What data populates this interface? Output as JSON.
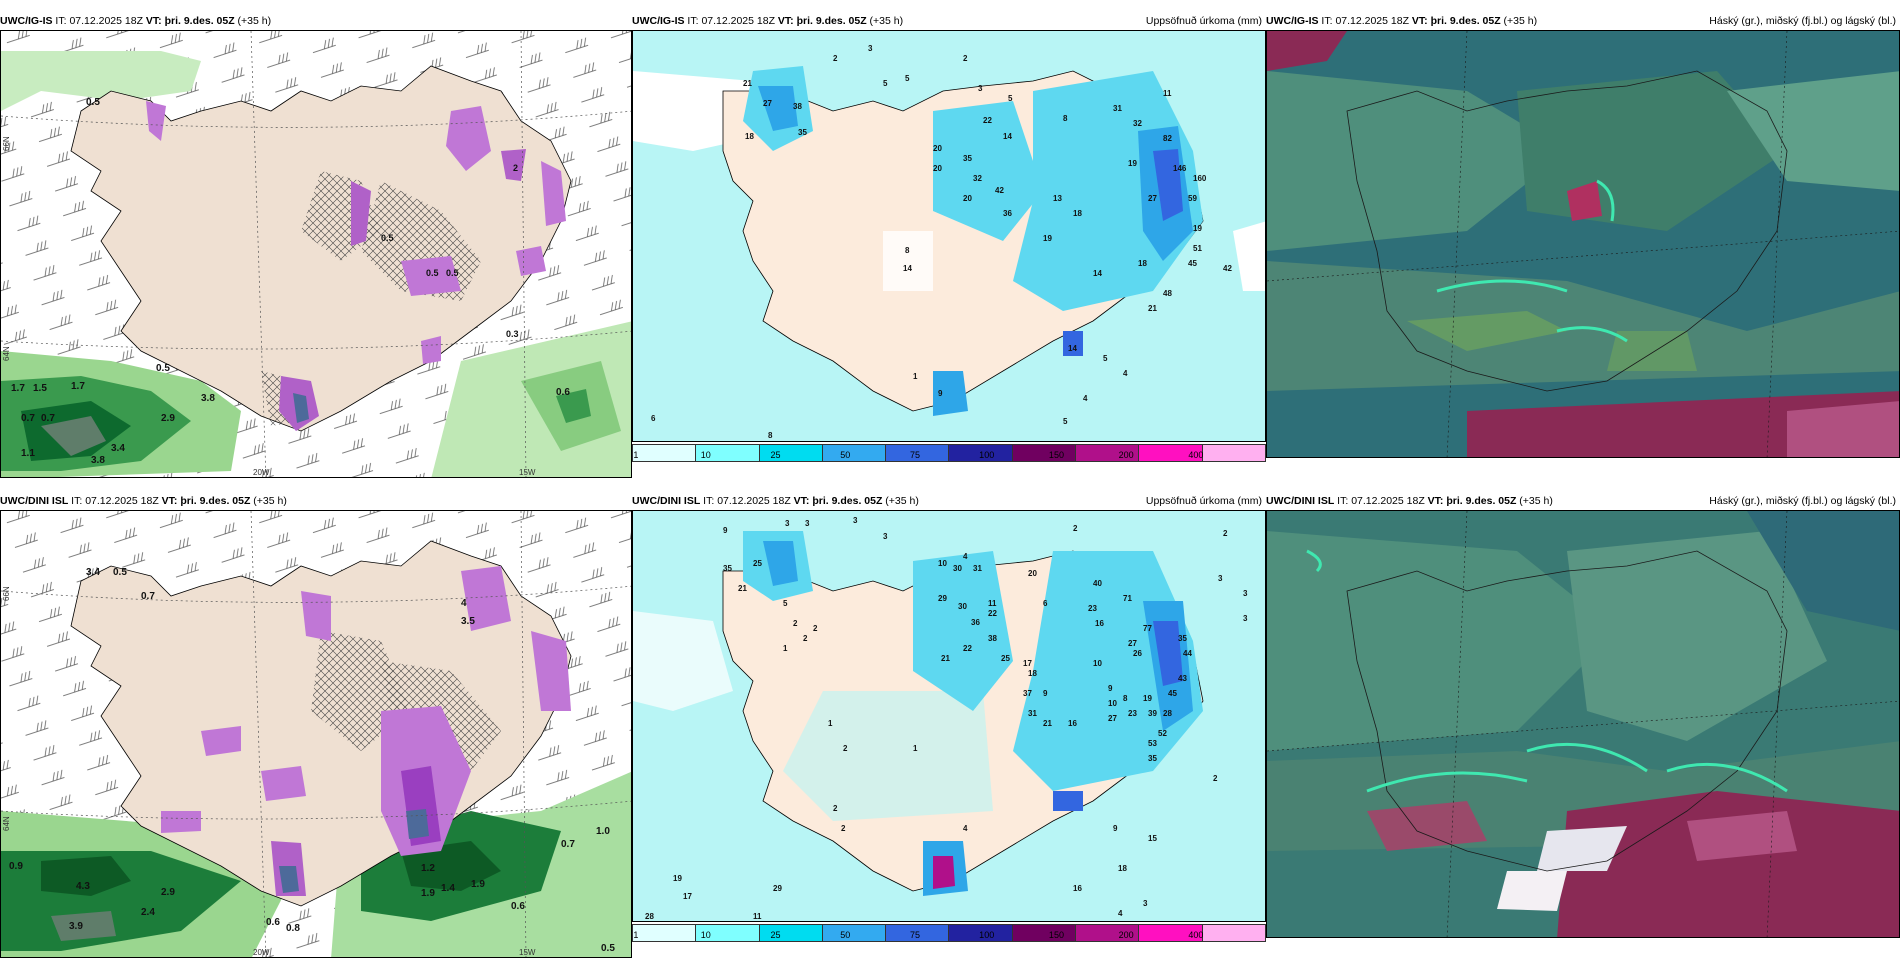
{
  "panels": [
    {
      "id": "p1",
      "model": "UWC/IG-IS",
      "it_prefix": "IT:",
      "it": "07.12.2025 18Z",
      "vt_prefix": "VT:",
      "vt": "þri. 9.des. 05Z",
      "lead": "(+35 h)",
      "right_title": ""
    },
    {
      "id": "p2",
      "model": "UWC/IG-IS",
      "it_prefix": "IT:",
      "it": "07.12.2025 18Z",
      "vt_prefix": "VT:",
      "vt": "þri. 9.des. 05Z",
      "lead": "(+35 h)",
      "right_title": "Uppsöfnuð úrkoma (mm)"
    },
    {
      "id": "p3",
      "model": "UWC/IG-IS",
      "it_prefix": "IT:",
      "it": "07.12.2025 18Z",
      "vt_prefix": "VT:",
      "vt": "þri. 9.des. 05Z",
      "lead": "(+35 h)",
      "right_title": "Háský (gr.), miðský (fj.bl.) og lágský (bl.)"
    },
    {
      "id": "p4",
      "model": "UWC/DINI ISL",
      "it_prefix": "IT:",
      "it": "07.12.2025 18Z",
      "vt_prefix": "VT:",
      "vt": "þri. 9.des. 05Z",
      "lead": "(+35 h)",
      "right_title": ""
    },
    {
      "id": "p5",
      "model": "UWC/DINI ISL",
      "it_prefix": "IT:",
      "it": "07.12.2025 18Z",
      "vt_prefix": "VT:",
      "vt": "þri. 9.des. 05Z",
      "lead": "(+35 h)",
      "right_title": "Uppsöfnuð úrkoma (mm)"
    },
    {
      "id": "p6",
      "model": "UWC/DINI ISL",
      "it_prefix": "IT:",
      "it": "07.12.2025 18Z",
      "vt_prefix": "VT:",
      "vt": "þri. 9.des. 05Z",
      "lead": "(+35 h)",
      "right_title": "Háský (gr.), miðský (fj.bl.) og lágský (bl.)"
    }
  ],
  "axis_labels": {
    "lon_20": "20W",
    "lon_15": "15W",
    "lat_66": "66N",
    "lat_64": "64N",
    "lat_63": "63N"
  },
  "colorbar": {
    "ticks": [
      "1",
      "10",
      "25",
      "50",
      "75",
      "100",
      "150",
      "200",
      "400"
    ],
    "colors": [
      "#e0ffff",
      "#7fffff",
      "#00dcf0",
      "#33aaf0",
      "#3366e0",
      "#2222a0",
      "#700060",
      "#b0108a",
      "#ff10c0",
      "#ffb0f0"
    ]
  },
  "precip_labels_top": [
    "2",
    "3",
    "5",
    "5",
    "3",
    "2",
    "21",
    "27",
    "38",
    "35",
    "18",
    "4",
    "5",
    "3",
    "2",
    "3",
    "22",
    "14",
    "8",
    "3",
    "4",
    "20",
    "35",
    "32",
    "20",
    "20",
    "42",
    "36",
    "19",
    "8",
    "13",
    "18",
    "9",
    "5",
    "9",
    "6",
    "31",
    "32",
    "11",
    "19",
    "82",
    "27",
    "15",
    "146",
    "160",
    "59",
    "36",
    "51",
    "18",
    "19",
    "1",
    "45",
    "14",
    "30",
    "26",
    "48",
    "14",
    "21",
    "14",
    "8",
    "42",
    "5",
    "4",
    "4",
    "5",
    "6",
    "8",
    "9",
    "21",
    "12",
    "1",
    "5",
    "2",
    "6"
  ],
  "precip_labels_bottom": [
    "9",
    "3",
    "3",
    "3",
    "3",
    "2",
    "2",
    "3",
    "3",
    "3",
    "35",
    "25",
    "21",
    "5",
    "2",
    "2",
    "2",
    "1",
    "10",
    "4",
    "30",
    "31",
    "20",
    "29",
    "30",
    "36",
    "11",
    "22",
    "6",
    "22",
    "21",
    "38",
    "25",
    "40",
    "23",
    "16",
    "71",
    "77",
    "35",
    "27",
    "26",
    "44",
    "17",
    "18",
    "10",
    "9",
    "10",
    "37",
    "9",
    "8",
    "19",
    "45",
    "43",
    "31",
    "21",
    "16",
    "23",
    "27",
    "28",
    "39",
    "52",
    "53",
    "35",
    "1",
    "2",
    "1",
    "2",
    "2",
    "4",
    "9",
    "15",
    "18",
    "16",
    "19",
    "17",
    "28",
    "29",
    "11",
    "4",
    "3",
    "2",
    "3",
    "3"
  ],
  "snow_labels_top": [
    "0.5",
    "0.6",
    "0.4",
    "0.7",
    "0.6",
    "0.7",
    "0.5",
    "1",
    "0.3",
    "0.9",
    "0.4",
    "0.3",
    "0.7",
    "0.5",
    "0.5",
    "0.5",
    "0.3",
    "0.8",
    "0.5",
    "0.8",
    "0.6",
    "2",
    "1.7",
    "1.5",
    "1.7",
    "0.5",
    "0.7",
    "0.7",
    "2.9",
    "3.8",
    "1.1",
    "3.4",
    "3.8",
    "0.6"
  ],
  "snow_labels_bottom": [
    "3.4",
    "0.5",
    "0.7",
    "0.8",
    "0.5",
    "0.5",
    "3",
    "1",
    "4",
    "3.5",
    "0.5",
    "0.9",
    "1.0",
    "0.8",
    "0.6",
    "0.9",
    "0.8",
    "0.3",
    "0.3",
    "3.7",
    "1.2",
    "1.9",
    "1.4",
    "1.5",
    "1.9",
    "0.9",
    "4.3",
    "2.9",
    "2.4",
    "3.9",
    "0.6",
    "0.8",
    "0.5",
    "1.0",
    "0.7",
    "0.6"
  ]
}
